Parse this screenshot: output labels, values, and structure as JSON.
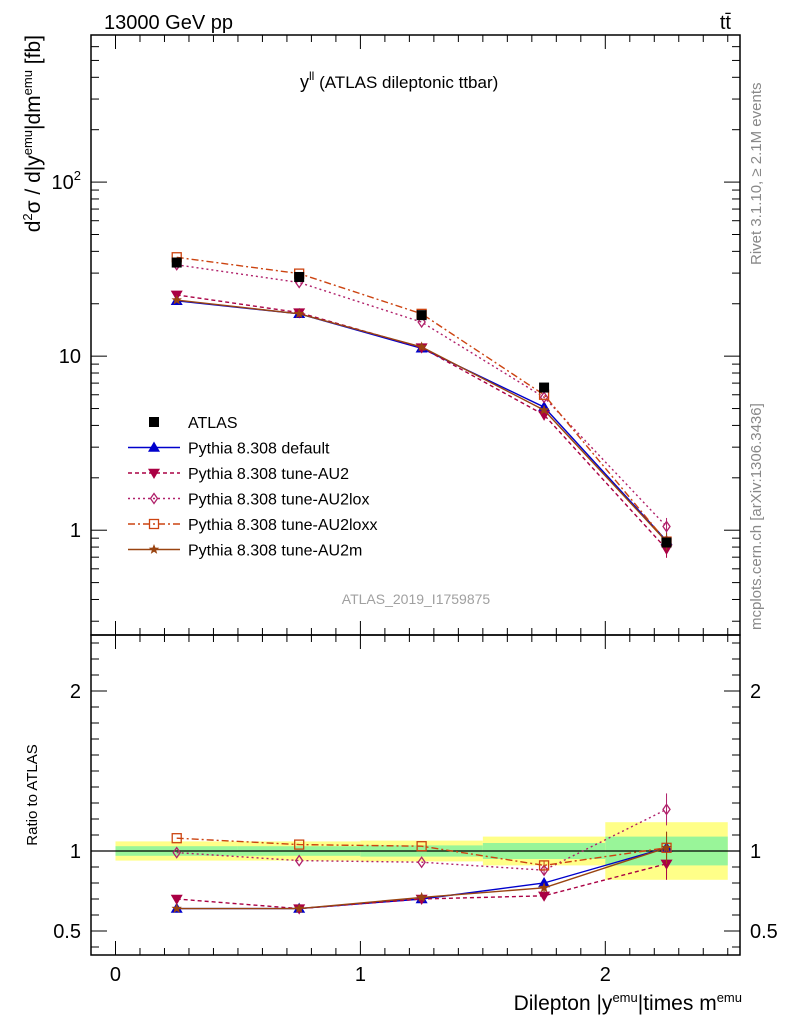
{
  "header": {
    "left": "13000 GeV pp",
    "right": "tt̄"
  },
  "side_labels": {
    "rivet": "Rivet 3.1.10, ≥ 2.1M events",
    "mcplots": "mcplots.cern.ch [arXiv:1306.3436]"
  },
  "chart_data": {
    "type": "line",
    "title_main": "y",
    "title_sup": "ll",
    "title_rest": " (ATLAS dileptonic ttbar)",
    "analysis_id": "ATLAS_2019_I1759875",
    "xlabel": "Dilepton |y^emu|times m^emu",
    "ylabel": "d²σ / d|y^emu|dm^emu [fb]",
    "ratio_ylabel": "Ratio to ATLAS",
    "xlim": [
      -0.1,
      2.55
    ],
    "ylim_main": [
      0.25,
      700
    ],
    "ylim_ratio": [
      0.35,
      2.35
    ],
    "yscale_main": "log",
    "x_ticks": [
      0,
      1,
      2
    ],
    "x_tick_labels": [
      "0",
      "1",
      "2"
    ],
    "y_ticks_main": [
      1,
      10,
      100
    ],
    "y_tick_labels_main": [
      "1",
      "10",
      "10²"
    ],
    "y_ticks_ratio": [
      0.5,
      1,
      2
    ],
    "y_tick_labels_ratio": [
      "0.5",
      "1",
      "2"
    ],
    "legend_position": "bottom-left",
    "x": [
      0.25,
      0.75,
      1.25,
      1.75,
      2.25
    ],
    "data": {
      "name": "ATLAS",
      "values": [
        34.5,
        28.5,
        17.2,
        6.6,
        0.85
      ],
      "bins": [
        [
          0,
          0.5
        ],
        [
          0.5,
          1.0
        ],
        [
          1.0,
          1.5
        ],
        [
          1.5,
          2.0
        ],
        [
          2.0,
          2.5
        ]
      ],
      "ratio_band_inner": [
        0.03,
        0.03,
        0.035,
        0.05,
        0.09
      ],
      "ratio_band_outer": [
        0.06,
        0.06,
        0.065,
        0.09,
        0.18
      ]
    },
    "series": [
      {
        "name": "Pythia 8.308 default",
        "color": "#0000cc",
        "marker": "triangle-up",
        "dash": "",
        "values": [
          20.8,
          17.5,
          11.1,
          5.1,
          0.87
        ],
        "ratio": [
          0.64,
          0.64,
          0.7,
          0.8,
          1.02
        ]
      },
      {
        "name": "Pythia 8.308 tune-AU2",
        "color": "#aa0044",
        "marker": "triangle-down",
        "dash": "4,3",
        "values": [
          22.5,
          17.8,
          11.2,
          4.6,
          0.78
        ],
        "ratio": [
          0.7,
          0.64,
          0.7,
          0.72,
          0.92
        ]
      },
      {
        "name": "Pythia 8.308 tune-AU2lox",
        "color": "#b0206a",
        "marker": "diamond-open",
        "dash": "2,3",
        "values": [
          33.5,
          26.5,
          15.7,
          5.8,
          1.05
        ],
        "ratio": [
          0.99,
          0.94,
          0.93,
          0.88,
          1.26
        ]
      },
      {
        "name": "Pythia 8.308 tune-AU2loxx",
        "color": "#cc4411",
        "marker": "square-open",
        "dash": "7,3,2,3",
        "values": [
          37.0,
          29.8,
          17.5,
          6.0,
          0.86
        ],
        "ratio": [
          1.08,
          1.04,
          1.03,
          0.91,
          1.02
        ]
      },
      {
        "name": "Pythia 8.308 tune-AU2m",
        "color": "#994411",
        "marker": "star",
        "dash": "",
        "values": [
          21.0,
          17.5,
          11.3,
          4.9,
          0.86
        ],
        "ratio": [
          0.64,
          0.64,
          0.71,
          0.77,
          1.02
        ]
      }
    ]
  }
}
